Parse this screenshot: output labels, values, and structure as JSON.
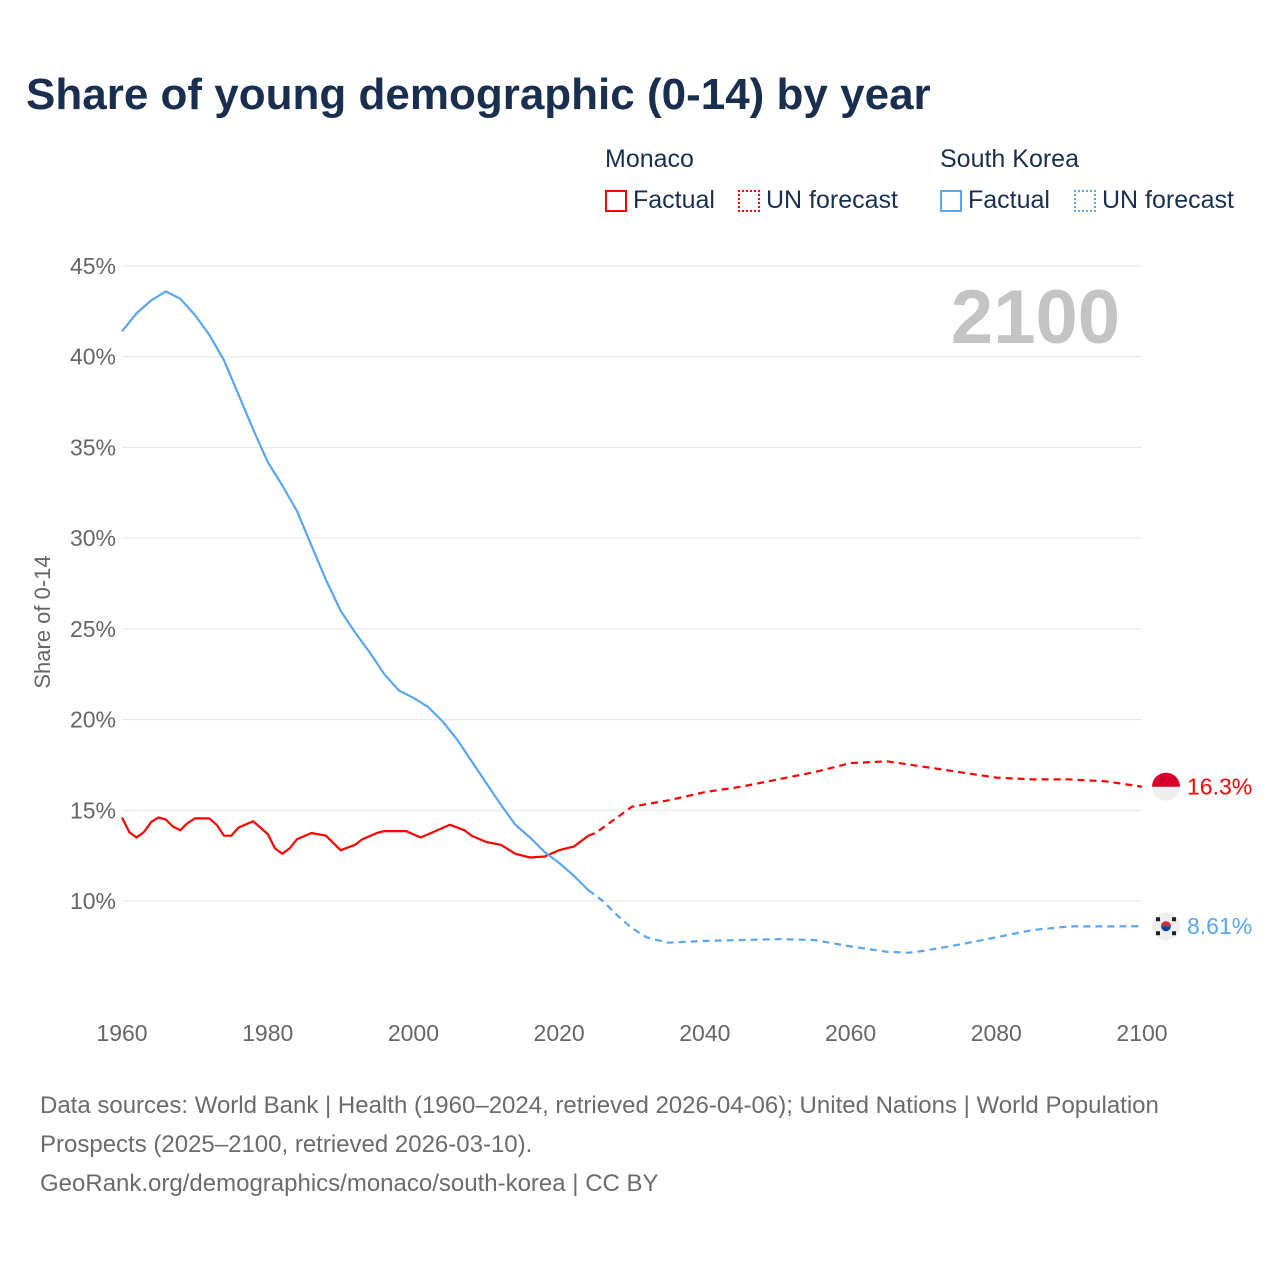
{
  "title": "Share of young demographic (0-14) by year",
  "legend": {
    "groups": [
      {
        "country": "Monaco",
        "color": "#ff0000",
        "factual": "Factual",
        "forecast": "UN forecast"
      },
      {
        "country": "South Korea",
        "color": "#5aa5ef",
        "factual": "Factual",
        "forecast": "UN forecast"
      }
    ]
  },
  "chart_data": {
    "type": "line",
    "title": "Share of young demographic (0-14) by year",
    "xlabel": "",
    "ylabel": "Share of 0-14",
    "xlim": [
      1960,
      2100
    ],
    "ylim": [
      5,
      45
    ],
    "xticks": [
      1960,
      1980,
      2000,
      2020,
      2040,
      2060,
      2080,
      2100
    ],
    "xtick_labels": [
      "1960",
      "1980",
      "2000",
      "2020",
      "2040",
      "2060",
      "2080",
      "2100"
    ],
    "yticks": [
      10,
      15,
      20,
      25,
      30,
      35,
      40,
      45
    ],
    "ytick_labels": [
      "10%",
      "15%",
      "20%",
      "25%",
      "30%",
      "35%",
      "40%",
      "45%"
    ],
    "grid": true,
    "year_watermark": "2100",
    "series": [
      {
        "name": "Monaco",
        "color": "#ff0000",
        "end_label": "16.3%",
        "factual": [
          [
            1960,
            14.6
          ],
          [
            1961,
            13.8
          ],
          [
            1962,
            13.5
          ],
          [
            1963,
            13.8
          ],
          [
            1964,
            14.35
          ],
          [
            1965,
            14.6
          ],
          [
            1966,
            14.5
          ],
          [
            1967,
            14.1
          ],
          [
            1968,
            13.9
          ],
          [
            1969,
            14.3
          ],
          [
            1970,
            14.55
          ],
          [
            1972,
            14.55
          ],
          [
            1973,
            14.2
          ],
          [
            1974,
            13.6
          ],
          [
            1975,
            13.6
          ],
          [
            1976,
            14.05
          ],
          [
            1978,
            14.4
          ],
          [
            1980,
            13.7
          ],
          [
            1981,
            12.9
          ],
          [
            1982,
            12.6
          ],
          [
            1983,
            12.9
          ],
          [
            1984,
            13.4
          ],
          [
            1986,
            13.75
          ],
          [
            1988,
            13.6
          ],
          [
            1990,
            12.8
          ],
          [
            1992,
            13.1
          ],
          [
            1993,
            13.4
          ],
          [
            1995,
            13.75
          ],
          [
            1996,
            13.85
          ],
          [
            1999,
            13.85
          ],
          [
            2001,
            13.5
          ],
          [
            2003,
            13.85
          ],
          [
            2005,
            14.2
          ],
          [
            2007,
            13.9
          ],
          [
            2008,
            13.6
          ],
          [
            2010,
            13.25
          ],
          [
            2012,
            13.1
          ],
          [
            2014,
            12.6
          ],
          [
            2016,
            12.4
          ],
          [
            2018,
            12.45
          ],
          [
            2020,
            12.8
          ],
          [
            2022,
            13.0
          ],
          [
            2024,
            13.6
          ]
        ],
        "forecast": [
          [
            2024,
            13.6
          ],
          [
            2025,
            13.75
          ],
          [
            2030,
            15.2
          ],
          [
            2035,
            15.55
          ],
          [
            2040,
            16.0
          ],
          [
            2045,
            16.3
          ],
          [
            2050,
            16.7
          ],
          [
            2055,
            17.1
          ],
          [
            2060,
            17.6
          ],
          [
            2065,
            17.7
          ],
          [
            2070,
            17.4
          ],
          [
            2075,
            17.1
          ],
          [
            2080,
            16.8
          ],
          [
            2085,
            16.7
          ],
          [
            2090,
            16.7
          ],
          [
            2095,
            16.6
          ],
          [
            2100,
            16.3
          ]
        ]
      },
      {
        "name": "South Korea",
        "color": "#5aa5ef",
        "end_label": "8.61%",
        "factual": [
          [
            1960,
            41.4
          ],
          [
            1962,
            42.4
          ],
          [
            1964,
            43.1
          ],
          [
            1966,
            43.6
          ],
          [
            1968,
            43.2
          ],
          [
            1970,
            42.3
          ],
          [
            1972,
            41.2
          ],
          [
            1974,
            39.8
          ],
          [
            1976,
            37.9
          ],
          [
            1978,
            36.0
          ],
          [
            1980,
            34.2
          ],
          [
            1982,
            32.9
          ],
          [
            1984,
            31.5
          ],
          [
            1986,
            29.6
          ],
          [
            1988,
            27.7
          ],
          [
            1990,
            26.0
          ],
          [
            1992,
            24.8
          ],
          [
            1994,
            23.7
          ],
          [
            1996,
            22.5
          ],
          [
            1998,
            21.6
          ],
          [
            2000,
            21.2
          ],
          [
            2002,
            20.7
          ],
          [
            2004,
            19.9
          ],
          [
            2006,
            18.9
          ],
          [
            2008,
            17.7
          ],
          [
            2010,
            16.5
          ],
          [
            2012,
            15.3
          ],
          [
            2014,
            14.2
          ],
          [
            2016,
            13.5
          ],
          [
            2018,
            12.7
          ],
          [
            2020,
            12.1
          ],
          [
            2022,
            11.4
          ],
          [
            2024,
            10.6
          ]
        ],
        "forecast": [
          [
            2024,
            10.6
          ],
          [
            2026,
            10.0
          ],
          [
            2028,
            9.2
          ],
          [
            2030,
            8.5
          ],
          [
            2032,
            8.0
          ],
          [
            2035,
            7.7
          ],
          [
            2040,
            7.8
          ],
          [
            2045,
            7.85
          ],
          [
            2050,
            7.9
          ],
          [
            2055,
            7.85
          ],
          [
            2060,
            7.5
          ],
          [
            2065,
            7.2
          ],
          [
            2068,
            7.15
          ],
          [
            2070,
            7.25
          ],
          [
            2075,
            7.6
          ],
          [
            2080,
            8.0
          ],
          [
            2085,
            8.4
          ],
          [
            2090,
            8.6
          ],
          [
            2095,
            8.6
          ],
          [
            2100,
            8.61
          ]
        ]
      }
    ]
  },
  "footer": {
    "line1": "Data sources: World Bank | Health (1960–2024, retrieved 2026-04-06); United Nations | World Population Prospects (2025–2100, retrieved 2026-03-10).",
    "line2": "GeoRank.org/demographics/monaco/south-korea | CC BY"
  }
}
